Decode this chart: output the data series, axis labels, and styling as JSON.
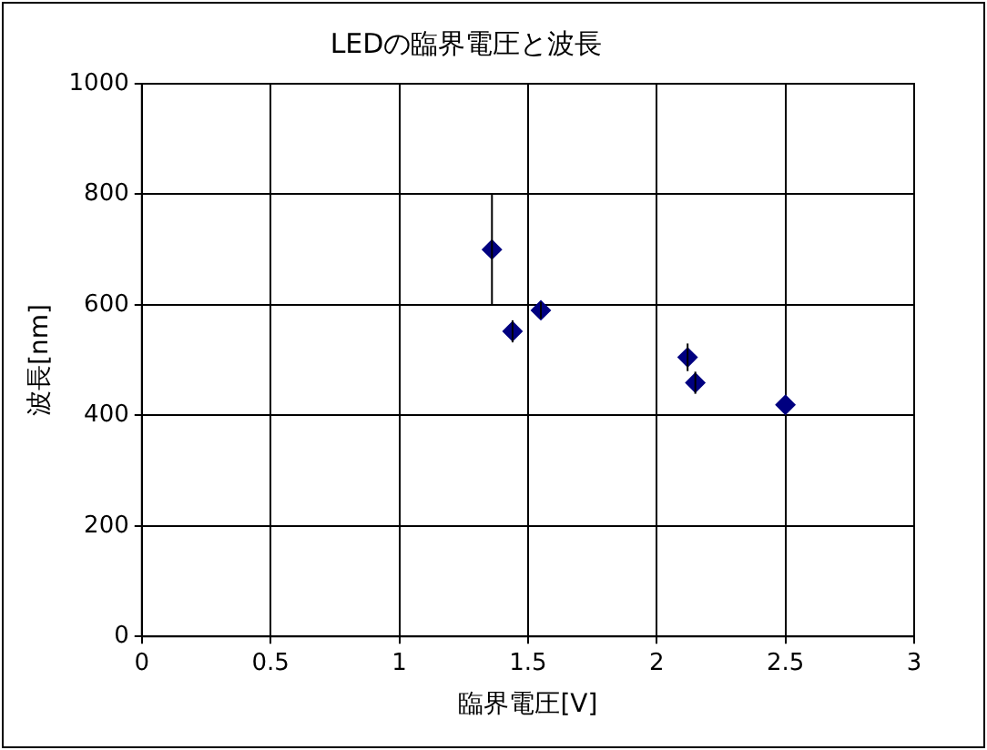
{
  "chart_data": {
    "type": "scatter",
    "title": "LEDの臨界電圧と波長",
    "xlabel": "臨界電圧[V]",
    "ylabel": "波長[nm]",
    "x": [
      1.36,
      1.44,
      1.55,
      2.12,
      2.15,
      2.5
    ],
    "values": [
      700,
      552,
      590,
      505,
      459,
      419
    ],
    "errors": [
      100,
      20,
      15,
      25,
      20,
      null
    ],
    "color": "#000080",
    "marker": "diamond",
    "xlim": [
      0,
      3
    ],
    "xticks": [
      0,
      0.5,
      1,
      1.5,
      2,
      2.5,
      3
    ],
    "ylim": [
      0,
      1000
    ],
    "yticks": [
      0,
      200,
      400,
      600,
      800,
      1000
    ],
    "grid": true,
    "legend": false
  }
}
